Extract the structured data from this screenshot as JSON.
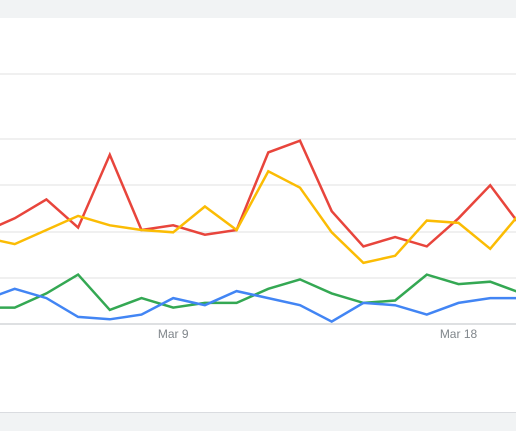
{
  "chart_data": {
    "type": "line",
    "title": "",
    "xlabel": "",
    "ylabel": "",
    "x_tick_labels": [
      "Mar 9",
      "Mar 18"
    ],
    "x_tick_indices": [
      6,
      15
    ],
    "grid": true,
    "legend": "none",
    "series": [
      {
        "color": "#e8453c",
        "values": [
          39,
          45,
          53,
          41,
          72,
          40,
          42,
          38,
          40,
          73,
          78,
          48,
          33,
          37,
          33,
          45,
          59,
          41
        ]
      },
      {
        "color": "#fbbc04",
        "values": [
          37,
          34,
          40,
          46,
          42,
          40,
          39,
          50,
          40,
          65,
          58,
          39,
          26,
          29,
          44,
          43,
          32,
          48
        ]
      },
      {
        "color": "#34a853",
        "values": [
          7,
          7,
          13,
          21,
          6,
          11,
          7,
          9,
          9,
          15,
          19,
          13,
          9,
          10,
          21,
          17,
          18,
          13
        ]
      },
      {
        "color": "#4285f4",
        "values": [
          10,
          15,
          11,
          3,
          2,
          4,
          11,
          8,
          14,
          11,
          8,
          1,
          9,
          8,
          4,
          9,
          11,
          11
        ]
      }
    ]
  }
}
